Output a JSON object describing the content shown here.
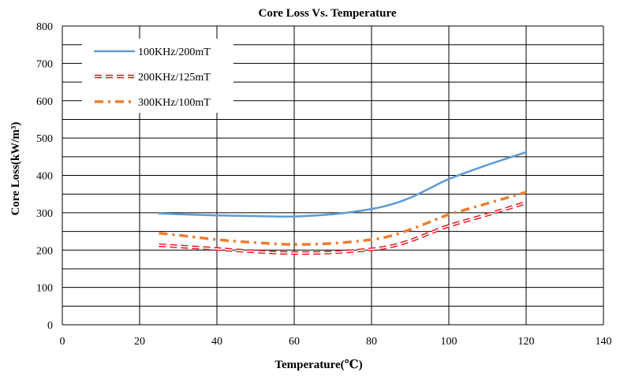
{
  "chart_data": {
    "type": "line",
    "title": "Core Loss Vs. Temperature",
    "xlabel": "Temperature(℃)",
    "ylabel": "Core Loss(kW/m³)",
    "xlim": [
      0,
      140
    ],
    "ylim": [
      0,
      800
    ],
    "x_ticks": [
      0,
      20,
      40,
      60,
      80,
      100,
      120,
      140
    ],
    "y_ticks": [
      0,
      100,
      200,
      300,
      400,
      500,
      600,
      700,
      800
    ],
    "x_tick_labels": [
      "0",
      "20",
      "40",
      "60",
      "80",
      "100",
      "120",
      "140"
    ],
    "y_tick_labels": [
      "0",
      "100",
      "200",
      "300",
      "400",
      "500",
      "600",
      "700",
      "800"
    ],
    "grid": true,
    "legend_position": "top-left",
    "series": [
      {
        "name": "100KHz/200mT",
        "color": "#5B9BD5",
        "style": "solid",
        "x": [
          25,
          30,
          40,
          50,
          60,
          70,
          80,
          85,
          90,
          95,
          100,
          110,
          120
        ],
        "y": [
          298,
          296,
          293,
          291,
          290,
          296,
          310,
          322,
          340,
          365,
          390,
          428,
          462
        ]
      },
      {
        "name": "200KHz/125mT",
        "color": "#E8141B",
        "style": "dashed-outline",
        "x": [
          25,
          30,
          40,
          50,
          60,
          70,
          80,
          85,
          90,
          95,
          100,
          110,
          120
        ],
        "y": [
          213,
          210,
          203,
          196,
          192,
          194,
          202,
          210,
          225,
          245,
          265,
          295,
          327
        ]
      },
      {
        "name": "300KHz/100mT",
        "color": "#ED7D31",
        "style": "dash-dot",
        "x": [
          25,
          30,
          40,
          50,
          60,
          70,
          80,
          85,
          90,
          95,
          100,
          110,
          120
        ],
        "y": [
          245,
          240,
          228,
          220,
          215,
          218,
          228,
          238,
          255,
          275,
          295,
          325,
          355
        ]
      }
    ]
  }
}
